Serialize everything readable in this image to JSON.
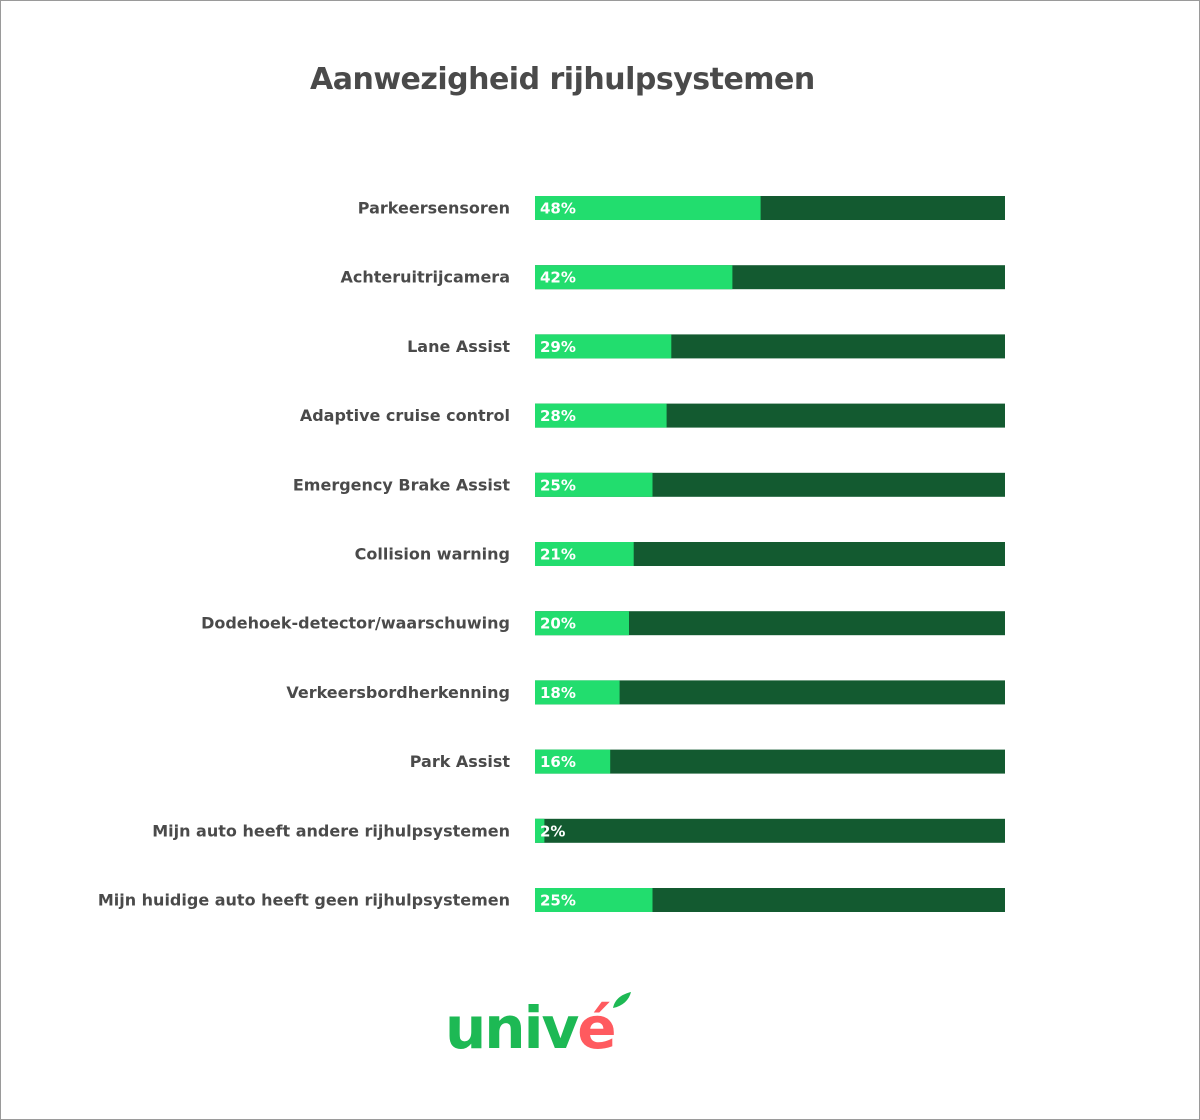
{
  "title": "Aanwezigheid rijhulpsystemen",
  "colors": {
    "bar_value": "#22dd6e",
    "bar_remainder": "#135a30",
    "label_text": "#4a4a4a",
    "logo_green": "#1db954",
    "logo_red": "#ff5a5f"
  },
  "logo": {
    "text": "univé",
    "part_green": "univ",
    "part_red": "é"
  },
  "chart_data": {
    "type": "bar",
    "orientation": "horizontal",
    "stacked_to_total": 100,
    "categories": [
      "Parkeersensoren",
      "Achteruitrijcamera",
      "Lane Assist",
      "Adaptive cruise control",
      "Emergency Brake Assist",
      "Collision warning",
      "Dodehoek-detector/waarschuwing",
      "Verkeersbordherkenning",
      "Park Assist",
      "Mijn auto heeft andere rijhulpsystemen",
      "Mijn huidige auto heeft geen rijhulpsystemen"
    ],
    "values": [
      48,
      42,
      29,
      28,
      25,
      21,
      20,
      18,
      16,
      2,
      25
    ],
    "value_labels": [
      "48%",
      "42%",
      "29%",
      "28%",
      "25%",
      "21%",
      "20%",
      "18%",
      "16%",
      "2%",
      "25%"
    ],
    "xlim": [
      0,
      100
    ],
    "grid": false,
    "legend": "none"
  }
}
